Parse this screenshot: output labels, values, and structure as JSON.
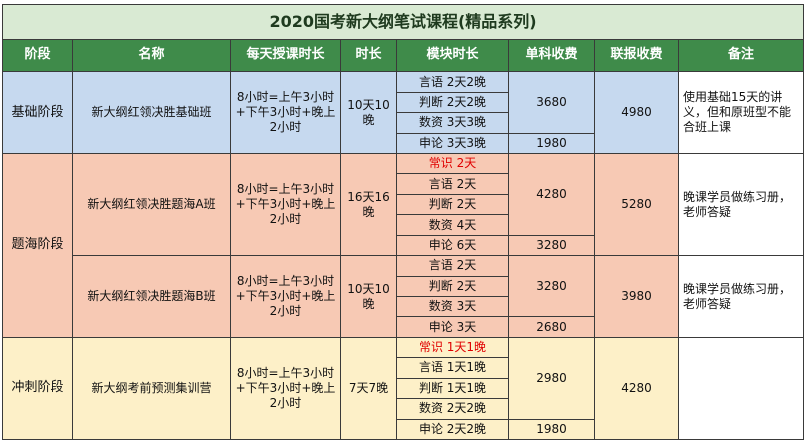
{
  "title": "2020国考新大纲笔试课程(精品系列)",
  "headers": [
    "阶段",
    "名称",
    "每天授课时长",
    "时长",
    "模块时长",
    "单科收费",
    "联报收费",
    "备注"
  ],
  "stages": {
    "basic": {
      "stage": "基础阶段",
      "name": "新大纲红领决胜基础班",
      "daily_hours": "8小时=上午3小时+下午3小时+晚上2小时",
      "duration": "10天10晚",
      "modules": [
        "言语 2天2晚",
        "判断 2天2晚",
        "数资 3天3晚",
        "申论 3天3晚"
      ],
      "single_fee_a": "3680",
      "single_fee_b": "1980",
      "combo_fee": "4980",
      "note": "使用基础15天的讲义，但和原班型不能合班上课"
    },
    "practice": {
      "stage": "题海阶段",
      "class_a": {
        "name": "新大纲红领决胜题海A班",
        "daily_hours": "8小时=上午3小时+下午3小时+晚上2小时",
        "duration": "16天16晚",
        "modules": [
          "常识 2天",
          "言语 2天",
          "判断 2天",
          "数资 4天",
          "申论 6天"
        ],
        "single_fee_a": "4280",
        "single_fee_b": "3280",
        "combo_fee": "5280",
        "note": "晚课学员做练习册，老师答疑"
      },
      "class_b": {
        "name": "新大纲红领决胜题海B班",
        "daily_hours": "8小时=上午3小时+下午3小时+晚上2小时",
        "duration": "10天10晚",
        "modules": [
          "言语 2天",
          "判断 2天",
          "数资 3天",
          "申论 3天"
        ],
        "single_fee_a": "3280",
        "single_fee_b": "2680",
        "combo_fee": "3980",
        "note": "晚课学员做练习册，老师答疑"
      }
    },
    "sprint": {
      "stage": "冲刺阶段",
      "name": "新大纲考前预测集训营",
      "daily_hours": "8小时=上午3小时+下午3小时+晚上2小时",
      "duration": "7天7晚",
      "modules": [
        "常识 1天1晚",
        "言语 1天1晚",
        "判断 1天1晚",
        "数资 2天2晚",
        "申论 2天2晚"
      ],
      "single_fee_a": "2980",
      "single_fee_b": "1980",
      "combo_fee": "4280",
      "note": ""
    }
  },
  "colors": {
    "header": "#3f8b4a",
    "basic": "#c6d9ef",
    "practice": "#f7c9b4",
    "sprint": "#fdf0c8",
    "highlight": "#e00000"
  }
}
